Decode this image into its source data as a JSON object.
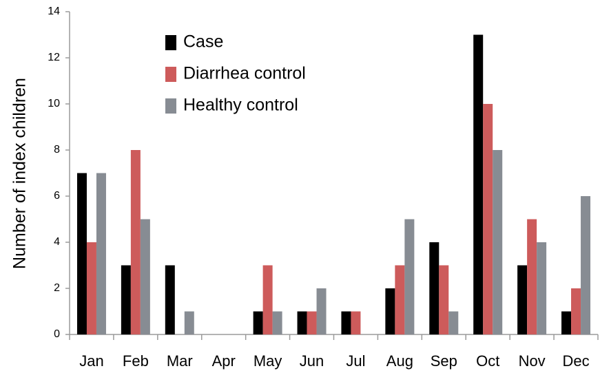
{
  "chart_data": {
    "type": "bar",
    "ylabel": "Number of index children",
    "categories": [
      "Jan",
      "Feb",
      "Mar",
      "Apr",
      "May",
      "Jun",
      "Jul",
      "Aug",
      "Sep",
      "Oct",
      "Nov",
      "Dec"
    ],
    "series": [
      {
        "name": "Case",
        "color": "#000000",
        "values": [
          7,
          3,
          3,
          0,
          1,
          1,
          1,
          2,
          4,
          13,
          3,
          1
        ]
      },
      {
        "name": "Diarrhea control",
        "color": "#cd5b5b",
        "values": [
          4,
          8,
          0,
          0,
          3,
          1,
          1,
          3,
          3,
          10,
          5,
          2
        ]
      },
      {
        "name": "Healthy control",
        "color": "#878c93",
        "values": [
          7,
          5,
          1,
          0,
          1,
          2,
          0,
          5,
          1,
          8,
          4,
          6
        ]
      }
    ],
    "ylim": [
      0,
      14
    ],
    "yticks": [
      0,
      2,
      4,
      6,
      8,
      10,
      12,
      14
    ],
    "grid": false,
    "legend": "upper left"
  }
}
